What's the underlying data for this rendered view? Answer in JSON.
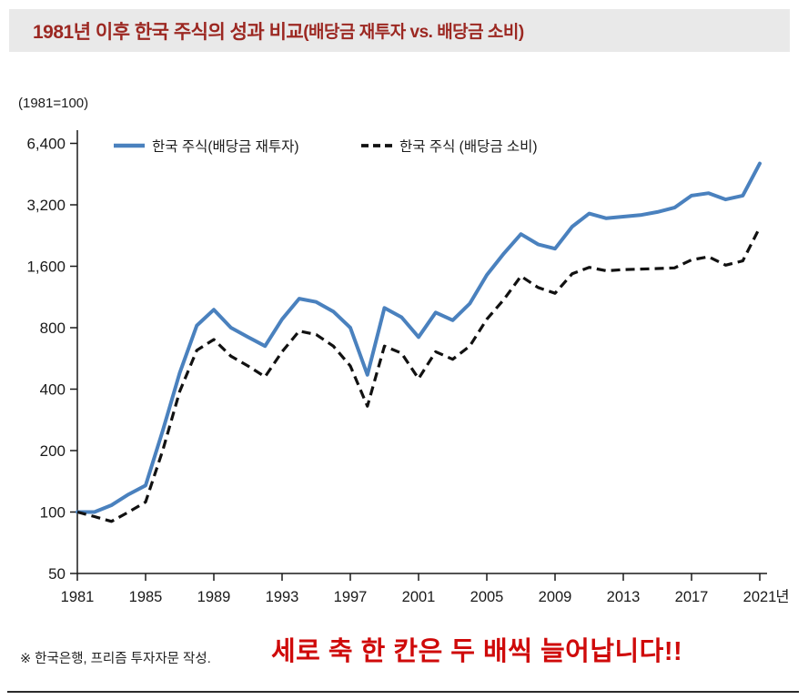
{
  "header": {
    "title_main": "1981년 이후 한국 주식의 성과 비교",
    "title_sub": "(배당금 재투자 vs. 배당금 소비)"
  },
  "chart_data": {
    "type": "line",
    "scale": "log2",
    "unit_label": "(1981=100)",
    "x_axis_suffix": "년",
    "y_ticks": [
      50,
      100,
      200,
      400,
      800,
      1600,
      3200,
      6400
    ],
    "y_tick_labels": [
      "50",
      "100",
      "200",
      "400",
      "800",
      "1,600",
      "3,200",
      "6,400"
    ],
    "x_ticks": [
      1981,
      1985,
      1989,
      1993,
      1997,
      2001,
      2005,
      2009,
      2013,
      2017,
      2021
    ],
    "x": [
      1981,
      1982,
      1983,
      1984,
      1985,
      1986,
      1987,
      1988,
      1989,
      1990,
      1991,
      1992,
      1993,
      1994,
      1995,
      1996,
      1997,
      1998,
      1999,
      2000,
      2001,
      2002,
      2003,
      2004,
      2005,
      2006,
      2007,
      2008,
      2009,
      2010,
      2011,
      2012,
      2013,
      2014,
      2015,
      2016,
      2017,
      2018,
      2019,
      2020,
      2021
    ],
    "ylim": [
      50,
      6400
    ],
    "grid": false,
    "legend_position": "top-inside",
    "series": [
      {
        "name": "한국 주식(배당금 재투자)",
        "color": "#4a81be",
        "style": "solid",
        "width": 4,
        "values": [
          100,
          100,
          108,
          122,
          135,
          250,
          480,
          820,
          980,
          800,
          720,
          650,
          880,
          1110,
          1070,
          960,
          800,
          470,
          1000,
          900,
          720,
          950,
          870,
          1050,
          1450,
          1850,
          2300,
          2050,
          1950,
          2500,
          2900,
          2750,
          2800,
          2850,
          2950,
          3100,
          3550,
          3650,
          3400,
          3550,
          5100
        ]
      },
      {
        "name": "한국 주식 (배당금 소비)",
        "color": "#111111",
        "style": "dashed",
        "width": 3.2,
        "dash": "10 6",
        "values": [
          100,
          95,
          90,
          100,
          112,
          200,
          390,
          620,
          700,
          580,
          520,
          460,
          610,
          770,
          740,
          650,
          520,
          330,
          650,
          600,
          450,
          610,
          560,
          650,
          880,
          1100,
          1430,
          1260,
          1180,
          1470,
          1580,
          1520,
          1540,
          1550,
          1560,
          1570,
          1720,
          1780,
          1620,
          1700,
          2480
        ]
      }
    ]
  },
  "footer": {
    "source_note": "※ 한국은행, 프리즘 투자자문 작성.",
    "annotation": "세로 축 한 칸은 두 배씩 늘어납니다!!",
    "annotation_color": "#cf0a0a"
  }
}
